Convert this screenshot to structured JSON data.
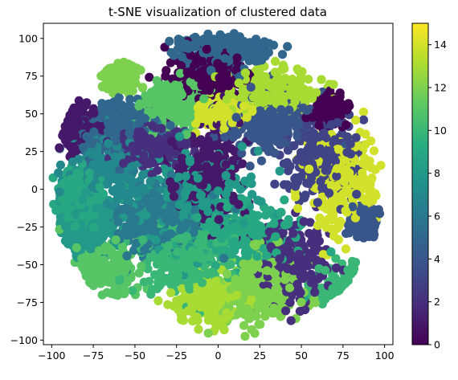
{
  "chart_data": {
    "type": "scatter",
    "title": "t-SNE visualization of clustered data",
    "xlabel": "",
    "ylabel": "",
    "xlim": [
      -105,
      105
    ],
    "ylim": [
      -103,
      110
    ],
    "xticks": [
      -100,
      -75,
      -50,
      -25,
      0,
      25,
      50,
      75,
      100
    ],
    "xtick_labels": [
      "−100",
      "−75",
      "−50",
      "−25",
      "0",
      "25",
      "50",
      "75",
      "100"
    ],
    "yticks": [
      -100,
      -75,
      -50,
      -25,
      0,
      25,
      50,
      75,
      100
    ],
    "ytick_labels": [
      "−100",
      "−75",
      "−50",
      "−25",
      "0",
      "25",
      "50",
      "75",
      "100"
    ],
    "grid": false,
    "colormap": "viridis",
    "color_range": [
      0,
      15
    ],
    "colorbar_ticks": [
      0,
      2,
      4,
      6,
      8,
      10,
      12,
      14
    ],
    "colorbar_tick_labels": [
      "0",
      "2",
      "4",
      "6",
      "8",
      "10",
      "12",
      "14"
    ],
    "clusters": [
      {
        "label": 0,
        "center": [
          -5,
          75
        ],
        "spread": [
          14,
          11
        ]
      },
      {
        "label": 0,
        "center": [
          68,
          53
        ],
        "spread": [
          6,
          6
        ]
      },
      {
        "label": 1,
        "center": [
          -8,
          10
        ],
        "spread": [
          16,
          24
        ]
      },
      {
        "label": 1,
        "center": [
          -85,
          42
        ],
        "spread": [
          7,
          10
        ]
      },
      {
        "label": 2,
        "center": [
          45,
          -48
        ],
        "spread": [
          14,
          18
        ]
      },
      {
        "label": 2,
        "center": [
          -42,
          28
        ],
        "spread": [
          14,
          10
        ]
      },
      {
        "label": 3,
        "center": [
          62,
          20
        ],
        "spread": [
          14,
          18
        ]
      },
      {
        "label": 4,
        "center": [
          30,
          45
        ],
        "spread": [
          18,
          14
        ]
      },
      {
        "label": 4,
        "center": [
          88,
          -22
        ],
        "spread": [
          5,
          6
        ]
      },
      {
        "label": 5,
        "center": [
          5,
          92
        ],
        "spread": [
          18,
          8
        ]
      },
      {
        "label": 5,
        "center": [
          -60,
          40
        ],
        "spread": [
          15,
          12
        ]
      },
      {
        "label": 6,
        "center": [
          -35,
          -20
        ],
        "spread": [
          20,
          16
        ]
      },
      {
        "label": 7,
        "center": [
          -62,
          15
        ],
        "spread": [
          18,
          18
        ]
      },
      {
        "label": 8,
        "center": [
          -15,
          -5
        ],
        "spread": [
          26,
          22
        ]
      },
      {
        "label": 8,
        "center": [
          -78,
          -25
        ],
        "spread": [
          12,
          14
        ]
      },
      {
        "label": 9,
        "center": [
          -85,
          -5
        ],
        "spread": [
          9,
          12
        ]
      },
      {
        "label": 9,
        "center": [
          15,
          -30
        ],
        "spread": [
          24,
          16
        ]
      },
      {
        "label": 10,
        "center": [
          78,
          -68
        ],
        "spread": [
          12,
          10
        ]
      },
      {
        "label": 10,
        "center": [
          -20,
          -48
        ],
        "spread": [
          18,
          14
        ]
      },
      {
        "label": 11,
        "center": [
          -70,
          -55
        ],
        "spread": [
          16,
          14
        ]
      },
      {
        "label": 11,
        "center": [
          -30,
          55
        ],
        "spread": [
          12,
          10
        ]
      },
      {
        "label": 12,
        "center": [
          -60,
          75
        ],
        "spread": [
          7,
          6
        ]
      },
      {
        "label": 12,
        "center": [
          25,
          -65
        ],
        "spread": [
          16,
          20
        ]
      },
      {
        "label": 13,
        "center": [
          30,
          65
        ],
        "spread": [
          18,
          10
        ]
      },
      {
        "label": 13,
        "center": [
          -5,
          -75
        ],
        "spread": [
          12,
          10
        ]
      },
      {
        "label": 14,
        "center": [
          75,
          5
        ],
        "spread": [
          14,
          22
        ]
      },
      {
        "label": 14,
        "center": [
          5,
          50
        ],
        "spread": [
          10,
          6
        ]
      }
    ]
  }
}
